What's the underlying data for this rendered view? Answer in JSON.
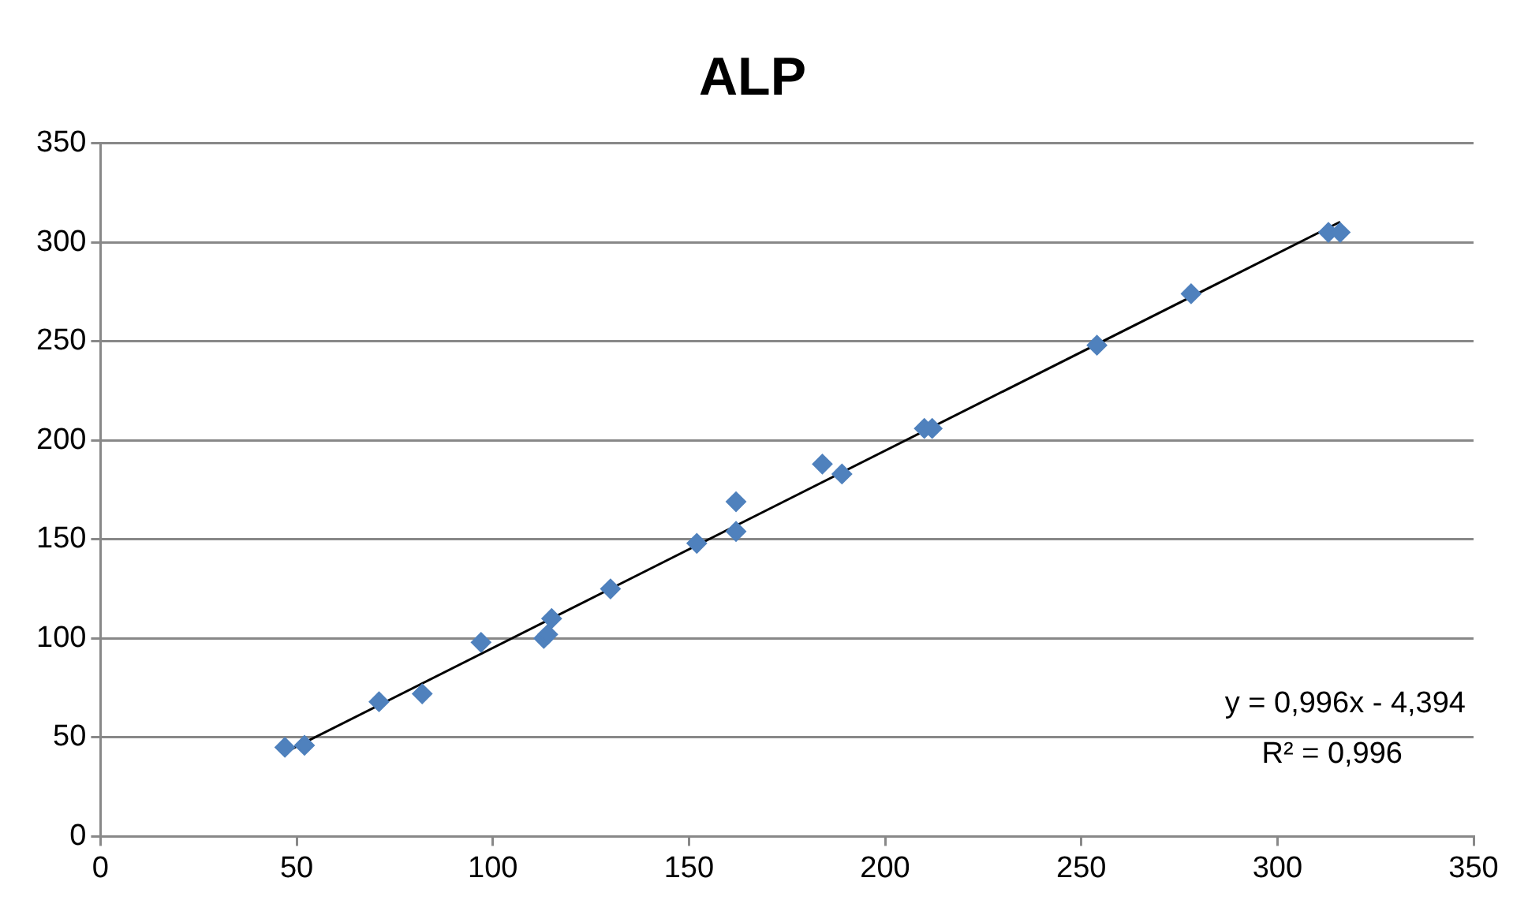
{
  "chart_data": {
    "type": "scatter",
    "title": "ALP",
    "xlim": [
      0,
      350
    ],
    "xticks": [
      0,
      50,
      100,
      150,
      200,
      250,
      300,
      350
    ],
    "ylim": [
      0,
      350
    ],
    "yticks": [
      0,
      50,
      100,
      150,
      200,
      250,
      300,
      350
    ],
    "grid": "y",
    "legend": false,
    "marker": "diamond",
    "series": [
      {
        "color": "#4f81bd",
        "x": [
          47,
          52,
          71,
          82,
          97,
          113,
          114,
          115,
          130,
          152,
          162,
          162,
          184,
          189,
          210,
          212,
          254,
          278,
          313,
          316
        ],
        "values": [
          45,
          46,
          68,
          72,
          98,
          100,
          102,
          110,
          125,
          148,
          154,
          169,
          188,
          183,
          206,
          206,
          248,
          274,
          305,
          305
        ]
      },
      {
        "type": "line",
        "color": "#000000",
        "marker": "none",
        "x": [
          47,
          316
        ],
        "values": [
          42.4,
          310.3
        ]
      }
    ],
    "annotations": [
      "y = 0,996x - 4,394",
      "R² = 0,996"
    ]
  }
}
